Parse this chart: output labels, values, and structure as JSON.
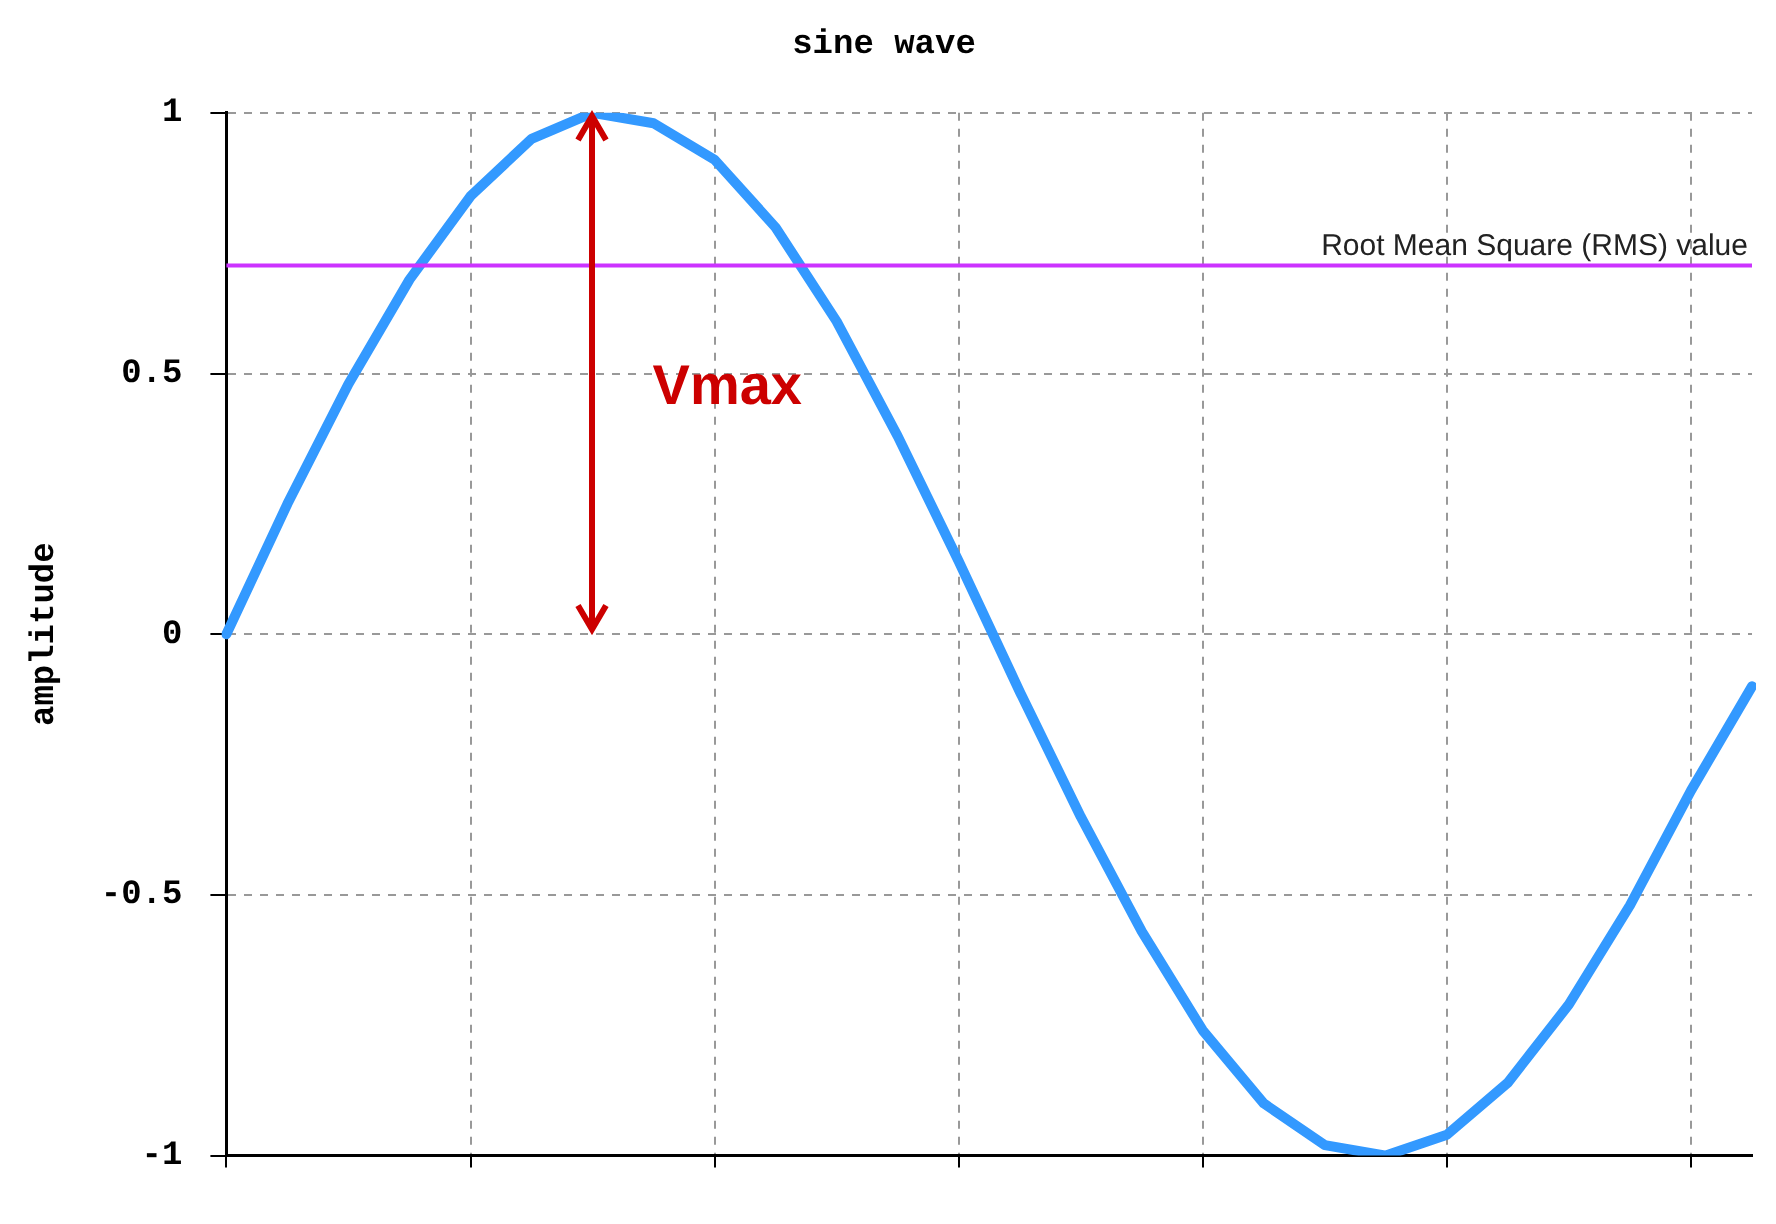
{
  "chart_data": {
    "type": "line",
    "title": "sine wave",
    "ylabel": "amplitude",
    "categories": [
      null,
      null,
      null,
      null,
      null,
      null,
      null,
      null,
      null,
      null,
      null,
      null,
      null,
      null,
      null,
      null,
      null,
      null,
      null,
      null,
      null,
      null,
      null,
      null,
      null,
      null
    ],
    "series": [
      {
        "color": "#3399ff",
        "values": [
          0,
          0.25,
          0.48,
          0.68,
          0.84,
          0.95,
          1.0,
          0.98,
          0.91,
          0.78,
          0.6,
          0.38,
          0.14,
          -0.11,
          -0.35,
          -0.57,
          -0.76,
          -0.9,
          -0.98,
          -1.0,
          -0.96,
          -0.86,
          -0.71,
          -0.52,
          -0.3,
          -0.1
        ]
      }
    ],
    "ylim": [
      -1,
      1
    ],
    "yticks": [
      -1,
      -0.5,
      0,
      0.5,
      1
    ],
    "grid": true,
    "tick_labels": "y",
    "marker": "none",
    "line_style": "solid",
    "ref_lines": [
      {
        "axis": "y",
        "value": 0.707,
        "label": "Root Mean Square (RMS) value",
        "color": "#cc33ff"
      }
    ],
    "annotations": [
      "Vmax"
    ]
  }
}
